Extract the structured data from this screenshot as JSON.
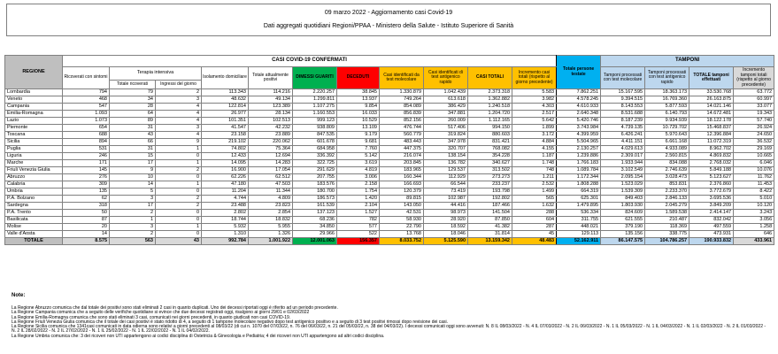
{
  "title": {
    "line1": "09 marzo 2022 - Aggiornamento casi Covid-19",
    "line2": "Dati aggregati quotidiani Regioni/PPAA - Ministero della Salute - Istituto Superiore di Sanità"
  },
  "colors": {
    "dimessi_green": "#00B050",
    "deceduti_red": "#FF0000",
    "casi_orange": "#FFC000",
    "persone_testate_cyan": "#00B0F0",
    "tamponi_light_blue": "#BDD7EE",
    "header_grey": "#BFBFBF",
    "totale_row_grey": "#D9D9D9"
  },
  "table": {
    "group_headers": {
      "casi_confermati": "CASI COVID-19 CONFERMATI",
      "tamponi": "TAMPONI",
      "terapia_intensiva": "Terapia intensiva"
    },
    "columns": {
      "regione": "REGIONE",
      "ricoverati": "Ricoverati con sintomi",
      "totale_ricoverati": "Totale ricoverati",
      "ingressi_giorno": "Ingressi del giorno",
      "isolamento": "Isolamento domiciliare",
      "attualmente_positivi": "Totale attualmente positivi",
      "dimessi_guariti": "DIMESSI GUARITI",
      "deceduti": "DECEDUTI",
      "casi_molecolare": "Casi identificati da test molecolare",
      "casi_antigenico": "Casi identificati di test antigenico rapido",
      "casi_totali": "CASI TOTALI",
      "incremento_casi": "Incremento casi totali (rispetto al giorno precedente)",
      "persone_testate": "Totale persone testate",
      "tamponi_molecolare": "Tamponi processati con test molecolare",
      "tamponi_antigenico": "Tamponi processati con test antigenico rapido",
      "totale_tamponi": "TOTALE tamponi effettuati",
      "incremento_tamponi": "Incremento tamponi totali (rispetto al giorno precedente)"
    },
    "rows": [
      {
        "regione": "Lombardia",
        "values": [
          "794",
          "79",
          "2",
          "113.343",
          "114.216",
          "2.220.257",
          "38.845",
          "1.330.879",
          "1.042.439",
          "2.373.318",
          "5.583",
          "7.862.251",
          "15.167.595",
          "18.363.173",
          "33.530.768",
          "63.772"
        ]
      },
      {
        "regione": "Veneto",
        "values": [
          "468",
          "34",
          "3",
          "48.632",
          "49.134",
          "1.299.811",
          "13.937",
          "749.264",
          "613.618",
          "1.362.882",
          "3.982",
          "4.578.245",
          "9.394.515",
          "16.769.360",
          "26.163.875",
          "60.997"
        ]
      },
      {
        "regione": "Campania",
        "values": [
          "547",
          "28",
          "4",
          "122.814",
          "123.389",
          "1.107.275",
          "9.854",
          "854.089",
          "386.429",
          "1.240.518",
          "4.303",
          "4.610.933",
          "8.143.553",
          "5.877.593",
          "14.021.146",
          "33.077"
        ]
      },
      {
        "regione": "Emilia-Romagna",
        "values": [
          "1.093",
          "64",
          "4",
          "26.977",
          "28.134",
          "1.160.553",
          "16.033",
          "856.839",
          "347.881",
          "1.204.720",
          "2.517",
          "2.640.348",
          "8.531.688",
          "6.140.793",
          "14.672.481",
          "19.343"
        ]
      },
      {
        "regione": "Lazio",
        "values": [
          "1.073",
          "89",
          "4",
          "101.351",
          "102.513",
          "999.123",
          "10.529",
          "852.156",
          "260.009",
          "1.112.165",
          "5.642",
          "5.420.746",
          "8.187.239",
          "9.934.939",
          "18.122.178",
          "57.740"
        ]
      },
      {
        "regione": "Piemonte",
        "values": [
          "654",
          "31",
          "3",
          "41.547",
          "42.232",
          "938.809",
          "13.109",
          "476.744",
          "517.406",
          "994.150",
          "1.899",
          "3.743.984",
          "4.739.135",
          "10.729.702",
          "15.468.837",
          "26.924"
        ]
      },
      {
        "regione": "Toscana",
        "values": [
          "688",
          "43",
          "4",
          "23.158",
          "23.889",
          "847.535",
          "9.179",
          "560.779",
          "319.824",
          "880.603",
          "3.172",
          "4.399.959",
          "6.426.241",
          "5.970.643",
          "12.396.884",
          "24.650"
        ]
      },
      {
        "regione": "Sicilia",
        "values": [
          "894",
          "66",
          "9",
          "219.102",
          "220.062",
          "601.678",
          "9.681",
          "483.443",
          "347.978",
          "831.421",
          "4.884",
          "5.504.965",
          "4.411.151",
          "6.661.168",
          "11.072.319",
          "36.532"
        ]
      },
      {
        "regione": "Puglia",
        "values": [
          "531",
          "31",
          "1",
          "74.802",
          "75.364",
          "684.958",
          "7.760",
          "447.375",
          "320.707",
          "768.082",
          "4.155",
          "2.130.257",
          "4.029.613",
          "4.933.089",
          "8.962.702",
          "29.169"
        ]
      },
      {
        "regione": "Liguria",
        "values": [
          "246",
          "15",
          "0",
          "12.433",
          "12.694",
          "336.392",
          "5.142",
          "216.074",
          "138.154",
          "354.228",
          "1.187",
          "1.239.886",
          "2.309.017",
          "2.560.815",
          "4.869.832",
          "10.665"
        ]
      },
      {
        "regione": "Marche",
        "values": [
          "171",
          "17",
          "1",
          "14.095",
          "14.283",
          "322.725",
          "3.619",
          "203.845",
          "136.782",
          "340.627",
          "1.748",
          "1.766.183",
          "1.933.944",
          "834.088",
          "2.768.032",
          "6.046"
        ]
      },
      {
        "regione": "Friuli Venezia Giulia",
        "values": [
          "145",
          "9",
          "2",
          "16.900",
          "17.054",
          "291.629",
          "4.819",
          "183.965",
          "129.537",
          "313.502",
          "748",
          "1.089.784",
          "3.102.549",
          "2.746.639",
          "5.849.188",
          "10.076"
        ]
      },
      {
        "regione": "Abruzzo",
        "values": [
          "276",
          "10",
          "0",
          "62.226",
          "62.512",
          "207.755",
          "3.006",
          "160.344",
          "112.929",
          "273.273",
          "1.211",
          "1.172.344",
          "2.095.154",
          "3.028.473",
          "5.123.627",
          "11.762"
        ]
      },
      {
        "regione": "Calabria",
        "values": [
          "309",
          "14",
          "1",
          "47.180",
          "47.503",
          "183.576",
          "2.158",
          "166.693",
          "66.544",
          "233.237",
          "2.532",
          "1.808.288",
          "1.523.029",
          "853.831",
          "2.376.860",
          "11.453"
        ]
      },
      {
        "regione": "Umbria",
        "values": [
          "135",
          "5",
          "0",
          "11.204",
          "11.344",
          "180.700",
          "1.754",
          "120.379",
          "73.419",
          "193.798",
          "1.499",
          "664.319",
          "1.539.309",
          "2.233.370",
          "3.772.679",
          "8.422"
        ]
      },
      {
        "regione": "P.A. Bolzano",
        "values": [
          "62",
          "3",
          "2",
          "4.744",
          "4.809",
          "186.573",
          "1.420",
          "89.815",
          "102.987",
          "192.802",
          "565",
          "625.301",
          "849.403",
          "2.846.133",
          "3.695.536",
          "5.010"
        ]
      },
      {
        "regione": "Sardegna",
        "values": [
          "318",
          "17",
          "2",
          "23.488",
          "23.823",
          "161.539",
          "2.104",
          "143.050",
          "44.416",
          "187.466",
          "1.632",
          "1.479.895",
          "1.803.930",
          "2.045.279",
          "3.849.209",
          "10.120"
        ]
      },
      {
        "regione": "P.A. Trento",
        "values": [
          "50",
          "2",
          "0",
          "2.802",
          "2.854",
          "137.123",
          "1.527",
          "42.531",
          "98.973",
          "141.504",
          "288",
          "536.334",
          "824.609",
          "1.589.538",
          "2.414.147",
          "3.243"
        ]
      },
      {
        "regione": "Basilicata",
        "values": [
          "87",
          "1",
          "0",
          "18.744",
          "18.832",
          "68.236",
          "782",
          "58.930",
          "28.920",
          "87.850",
          "604",
          "311.755",
          "621.555",
          "210.487",
          "832.042",
          "3.056"
        ]
      },
      {
        "regione": "Molise",
        "values": [
          "20",
          "3",
          "1",
          "5.932",
          "5.955",
          "34.850",
          "577",
          "22.790",
          "18.592",
          "41.382",
          "287",
          "448.021",
          "379.190",
          "118.369",
          "497.559",
          "1.258"
        ]
      },
      {
        "regione": "Valle d'Aosta",
        "values": [
          "14",
          "2",
          "0",
          "1.310",
          "1.326",
          "29.966",
          "522",
          "13.768",
          "18.046",
          "31.814",
          "45",
          "129.113",
          "135.156",
          "338.775",
          "473.931",
          "646"
        ]
      }
    ],
    "totale": {
      "label": "TOTALE",
      "values": [
        "8.575",
        "563",
        "43",
        "992.784",
        "1.001.922",
        "12.001.063",
        "156.357",
        "8.033.752",
        "5.125.590",
        "13.159.342",
        "48.483",
        "52.162.911",
        "86.147.575",
        "104.786.257",
        "190.933.832",
        "433.961"
      ]
    }
  },
  "notes": {
    "heading": "Note:",
    "items": [
      "La Regione Abruzzo  comunica che dal totale dei positivi sono stati eliminati 2 casi in quanto duplicati. Uno dei decessi riportati oggi è riferito ad un periodo precedente.",
      "La Regione Campania comunica che a seguito delle verifiche quotidiane si evince che due decessi registrati oggi, risalgono ai giorni 29/01 e 02/03/2022",
      "La Regione Emilia-Romagna  comunica che sono stati eliminati 3 casi, comunicati nei giorni precedenti, in quanto giudicati non casi COVID-19.",
      "La Regione Friuli Venezia Giulia comunica che il totale dei casi positivi è stato ridotto di 4, a seguito di 1 tampone molecolare negativo dopo test antigenico positivo e a seguito di 3 test positivi rimossi dopo revisione dei casi.",
      "La Regione Sicilia comunica che 1341casi comunicati in data odierna sono relativi a giorni precedenti al 08/03/22 (di cui n. 1070 del 07/03/22, n. 76 del 06/03/22, n. 21 del 05/03/22, n. 38 del 04/03/22). I decessi comunicati oggi sono avvenuti: N. 8 IL 08/03/2022 - N. 4 IL 07/03/2022 - N. 2 IL 06/03/2022 - N. 1 IL 05/03/2022 - N. 1 IL 04/03/2022 - N. 1 IL 02/03/2022 - N. 2 IL 01/03/2022 - N. 2 IL 28/02/2022 - N. 2 IL 27/02/2022 - N. 1 IL 25/02/2022 - N. 1 IL 22/02/2022 - N. 1 IL 04/02/2022.",
      "La Regione Umbria comunica che: 3 dei ricoveri non UTI appartengono ai codici disciplina di Ostetricia & Ginecologia e Pediatria; 4 dei ricoveri non UTI appartengono ad altri codici disciplina."
    ]
  }
}
